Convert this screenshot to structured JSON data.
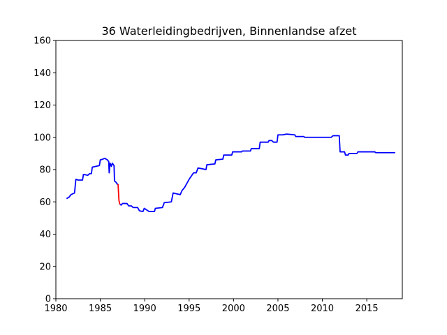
{
  "chart_data": {
    "type": "line",
    "title": "36 Waterleidingbedrijven, Binnenlandse afzet",
    "xlabel": "",
    "ylabel": "",
    "xlim": [
      1980,
      2019
    ],
    "ylim": [
      0,
      160
    ],
    "x_ticks": [
      "1980",
      "1985",
      "1990",
      "1995",
      "2000",
      "2005",
      "2010",
      "2015"
    ],
    "y_ticks": [
      "0",
      "20",
      "40",
      "60",
      "80",
      "100",
      "120",
      "140",
      "160"
    ],
    "grid": false,
    "series": [
      {
        "color": "#0000ff",
        "points": [
          [
            1981.2,
            62
          ],
          [
            1981.5,
            63
          ],
          [
            1981.7,
            64.5
          ],
          [
            1981.9,
            65
          ],
          [
            1982.1,
            65.5
          ],
          [
            1982.25,
            74
          ],
          [
            1982.5,
            73.5
          ],
          [
            1983.0,
            73.5
          ],
          [
            1983.1,
            77
          ],
          [
            1983.6,
            76.5
          ],
          [
            1983.8,
            77.5
          ],
          [
            1984.0,
            77.5
          ],
          [
            1984.1,
            81.5
          ],
          [
            1984.5,
            82
          ],
          [
            1984.9,
            82.5
          ],
          [
            1985.0,
            86
          ],
          [
            1985.3,
            86.5
          ],
          [
            1985.5,
            87
          ],
          [
            1985.8,
            86
          ],
          [
            1985.95,
            85
          ],
          [
            1986.0,
            78
          ],
          [
            1986.1,
            84
          ],
          [
            1986.25,
            82
          ],
          [
            1986.35,
            84
          ],
          [
            1986.55,
            82.5
          ],
          [
            1986.6,
            73
          ],
          [
            1986.8,
            72
          ],
          [
            1986.9,
            71
          ],
          [
            1987.0,
            71
          ]
        ]
      },
      {
        "color": "#ff0000",
        "points": [
          [
            1987.0,
            71
          ],
          [
            1987.1,
            61
          ],
          [
            1987.2,
            58.5
          ]
        ]
      },
      {
        "color": "#0000ff",
        "points": [
          [
            1987.2,
            58.5
          ],
          [
            1987.35,
            58
          ],
          [
            1987.5,
            59
          ],
          [
            1988.0,
            59
          ],
          [
            1988.2,
            57.5
          ],
          [
            1988.5,
            57.5
          ],
          [
            1988.7,
            56.5
          ],
          [
            1989.2,
            56.5
          ],
          [
            1989.4,
            54.5
          ],
          [
            1989.8,
            54
          ],
          [
            1989.95,
            56
          ],
          [
            1990.5,
            54
          ],
          [
            1991.1,
            54
          ],
          [
            1991.2,
            56
          ],
          [
            1992.0,
            56.5
          ],
          [
            1992.2,
            59.5
          ],
          [
            1993.0,
            60
          ],
          [
            1993.2,
            65.5
          ],
          [
            1993.6,
            65
          ],
          [
            1994.0,
            64.5
          ],
          [
            1994.2,
            67
          ],
          [
            1994.5,
            69
          ],
          [
            1995.0,
            74
          ],
          [
            1995.5,
            78
          ],
          [
            1995.8,
            78
          ],
          [
            1996.0,
            81
          ],
          [
            1996.5,
            80.5
          ],
          [
            1996.9,
            80
          ],
          [
            1997.0,
            83
          ],
          [
            1997.9,
            83.5
          ],
          [
            1998.0,
            86
          ],
          [
            1998.8,
            86.5
          ],
          [
            1998.9,
            89
          ],
          [
            1999.8,
            89
          ],
          [
            1999.9,
            91
          ],
          [
            2000.9,
            91
          ],
          [
            2001.0,
            91.5
          ],
          [
            2001.9,
            91.5
          ],
          [
            2002.0,
            93
          ],
          [
            2002.9,
            93
          ],
          [
            2003.0,
            97
          ],
          [
            2003.9,
            97
          ],
          [
            2004.0,
            98
          ],
          [
            2004.3,
            98
          ],
          [
            2004.5,
            97
          ],
          [
            2004.9,
            97
          ],
          [
            2005.0,
            101.5
          ],
          [
            2005.5,
            101.5
          ],
          [
            2006.0,
            102
          ],
          [
            2006.9,
            101.5
          ],
          [
            2007.0,
            100.5
          ],
          [
            2007.9,
            100.5
          ],
          [
            2008.0,
            100
          ],
          [
            2011.0,
            100
          ],
          [
            2011.2,
            101
          ],
          [
            2011.9,
            101
          ],
          [
            2012.0,
            91
          ],
          [
            2012.5,
            91
          ],
          [
            2012.6,
            89
          ],
          [
            2012.9,
            89
          ],
          [
            2013.0,
            90
          ],
          [
            2013.9,
            90
          ],
          [
            2014.0,
            91
          ],
          [
            2015.9,
            91
          ],
          [
            2016.0,
            90.5
          ],
          [
            2018.2,
            90.5
          ]
        ]
      }
    ]
  }
}
